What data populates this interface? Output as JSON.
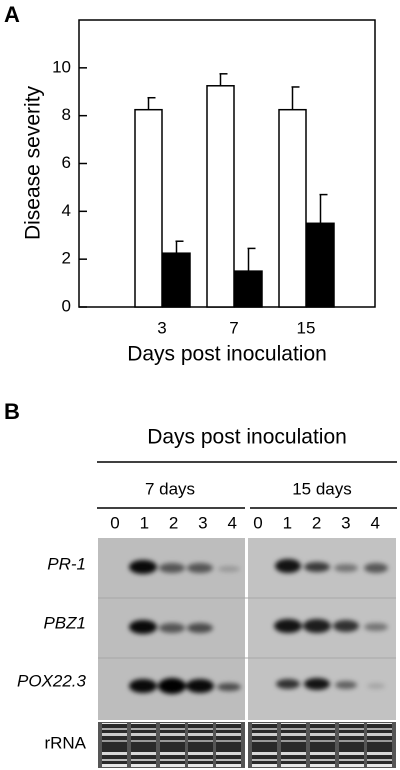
{
  "chart_data": {
    "type": "bar",
    "panel_label": "A",
    "ylabel": "Disease severity",
    "xlabel": "Days post inoculation",
    "categories": [
      "3",
      "7",
      "15"
    ],
    "ylim": [
      0,
      12
    ],
    "yticks": [
      0,
      2,
      4,
      6,
      8,
      10
    ],
    "series": [
      {
        "color": "#ffffff",
        "values": [
          8.25,
          9.25,
          8.25
        ],
        "errors": [
          0.5,
          0.5,
          0.95
        ]
      },
      {
        "color": "#000000",
        "values": [
          2.25,
          1.5,
          3.5
        ],
        "errors": [
          0.5,
          0.95,
          1.2
        ]
      }
    ]
  },
  "blot": {
    "panel_label": "B",
    "title": "Days post inoculation",
    "groups": [
      {
        "label": "7 days",
        "lanes": [
          "0",
          "1",
          "2",
          "3",
          "4"
        ]
      },
      {
        "label": "15 days",
        "lanes": [
          "0",
          "1",
          "2",
          "3",
          "4"
        ]
      }
    ],
    "rows": [
      "PR-1",
      "PBZ1",
      "POX22.3",
      "rRNA"
    ]
  }
}
